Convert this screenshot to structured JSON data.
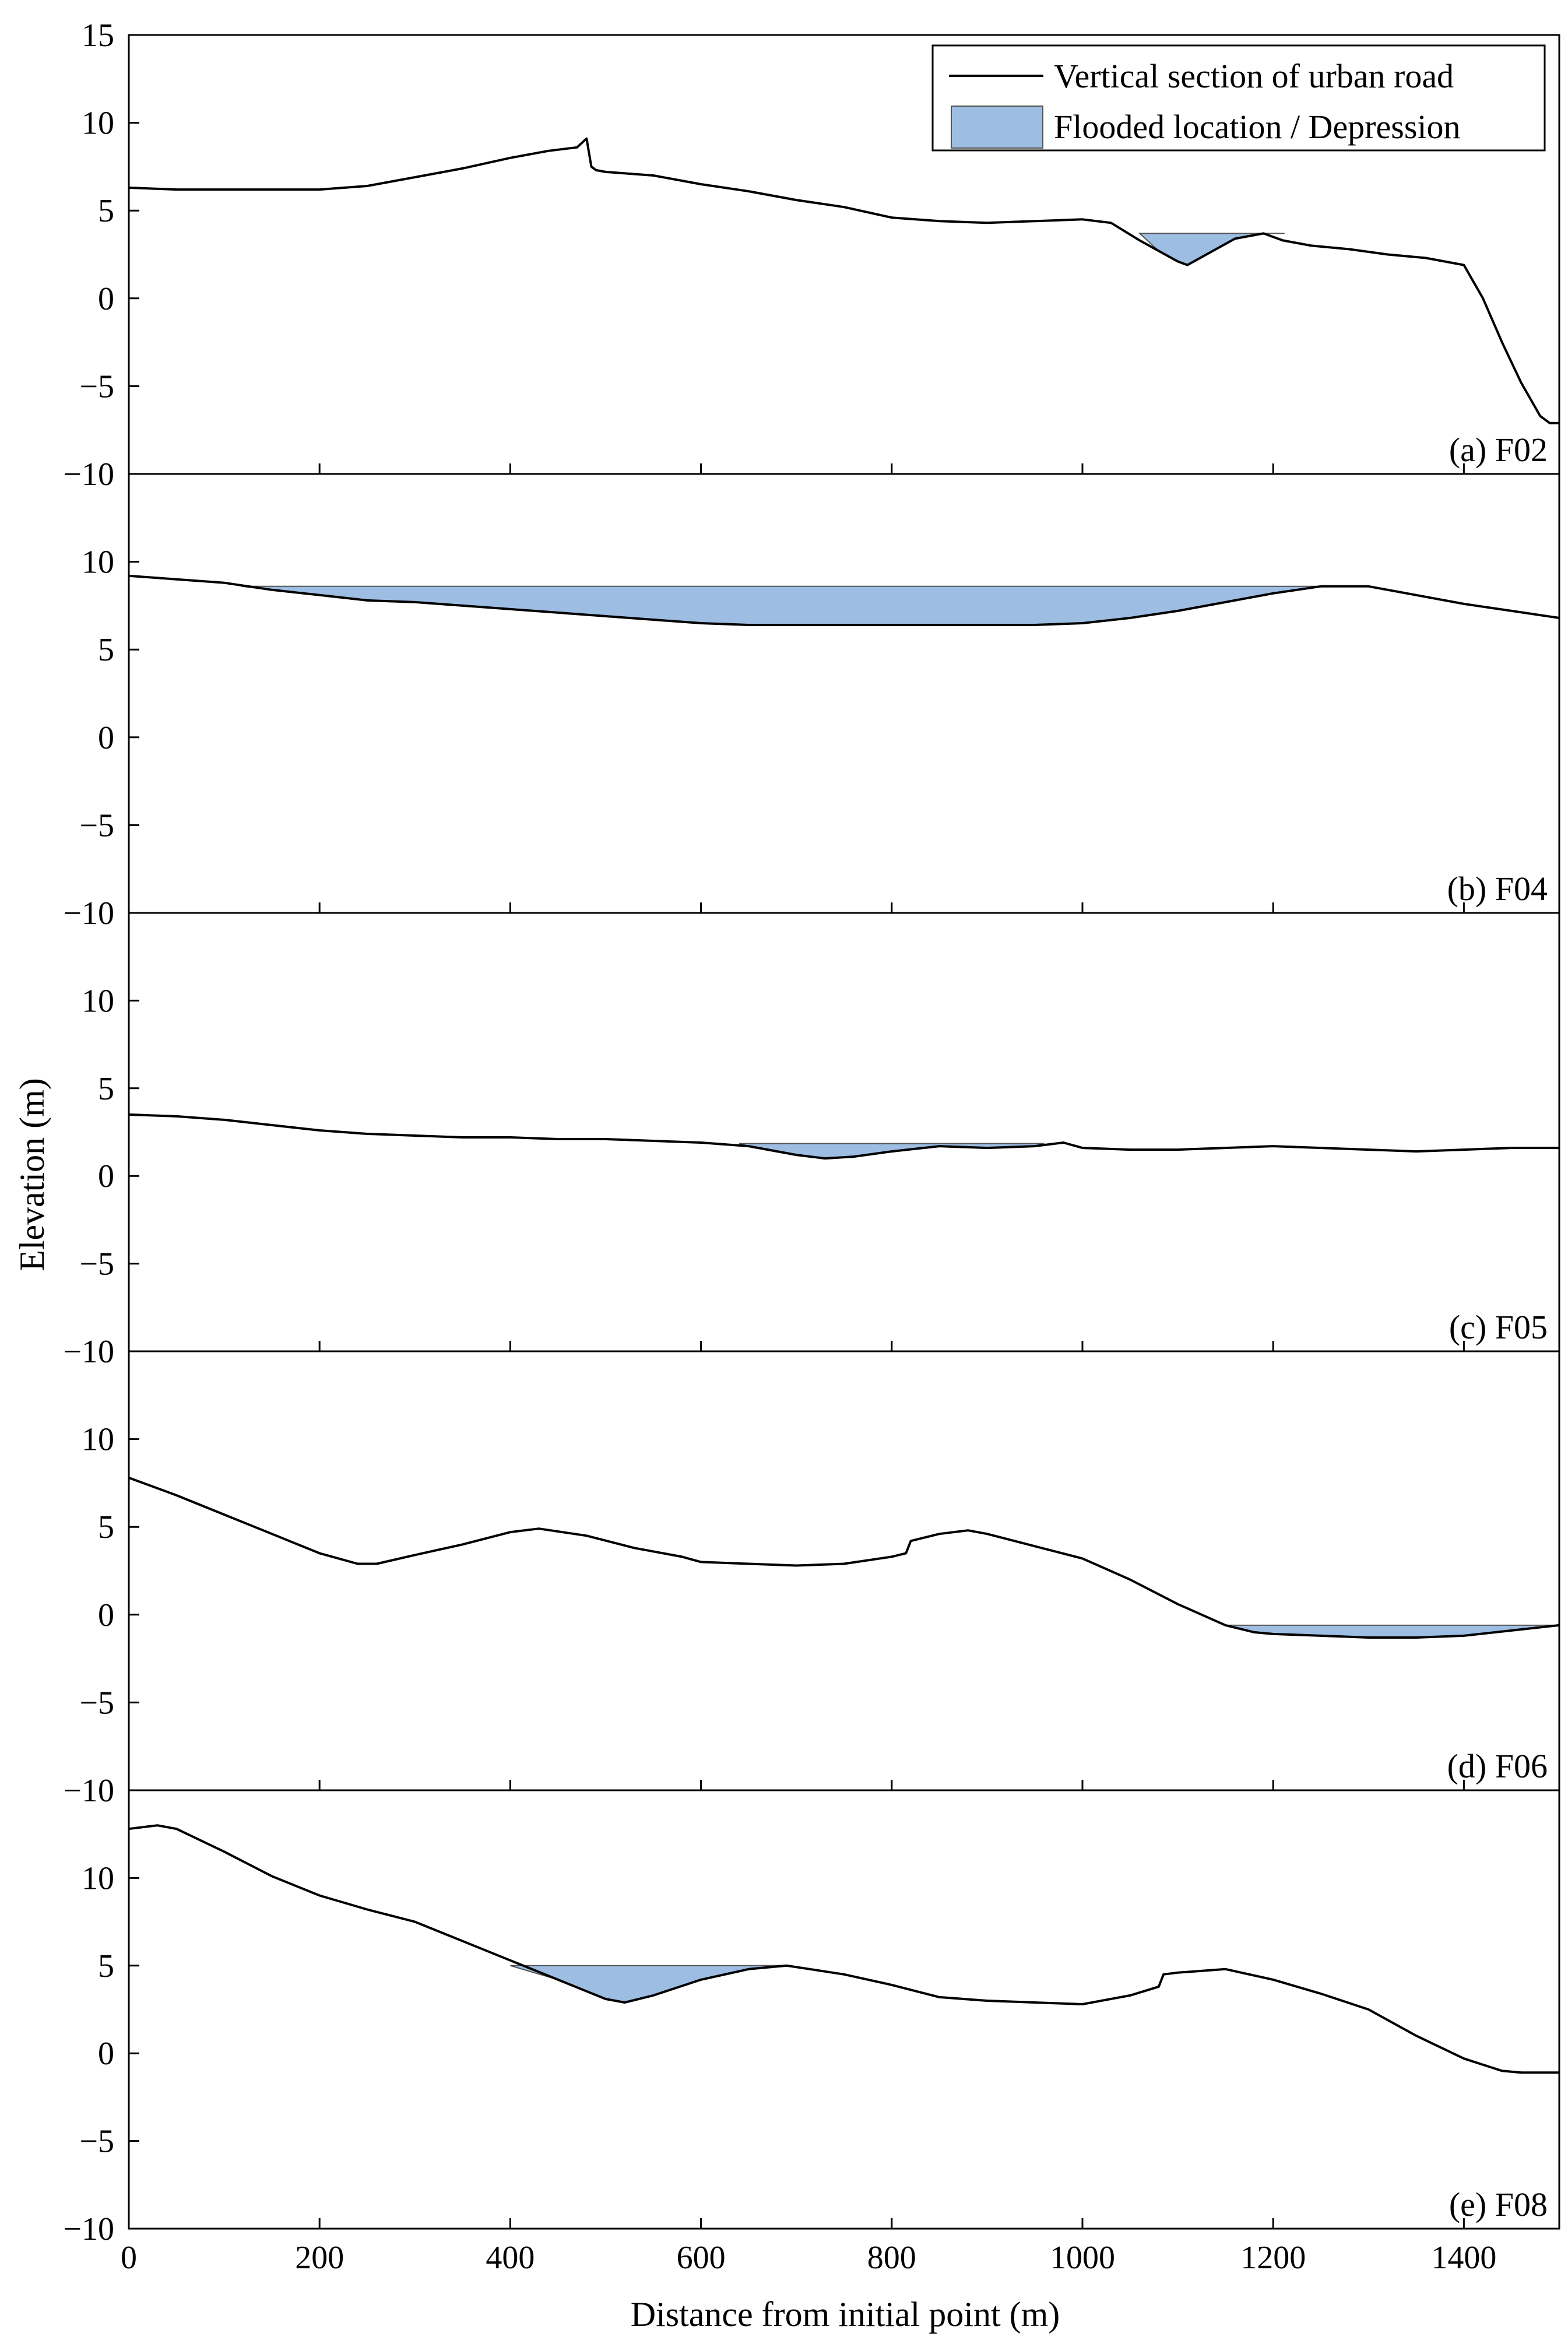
{
  "figure": {
    "xlabel": "Distance from initial point (m)",
    "ylabel": "Elevation (m)"
  },
  "legend": {
    "line_label": "Vertical section of urban road",
    "fill_label": "Flooded location / Depression",
    "position": "top-right"
  },
  "colors": {
    "road_line": "#000000",
    "flood_fill": "#9dbde2",
    "flood_edge": "#555555"
  },
  "chart_data": [
    {
      "type": "line",
      "panel": "a",
      "label": "(a)  F02",
      "xlim": [
        0,
        1500
      ],
      "ylim": [
        -10,
        15
      ],
      "yticks": [
        -10,
        -5,
        0,
        5,
        10,
        15
      ],
      "series": [
        {
          "name": "Vertical section of urban road",
          "x": [
            0,
            50,
            100,
            150,
            200,
            250,
            300,
            350,
            400,
            440,
            470,
            480,
            485,
            490,
            500,
            550,
            600,
            650,
            700,
            750,
            800,
            850,
            900,
            950,
            1000,
            1030,
            1060,
            1080,
            1100,
            1110,
            1130,
            1160,
            1190,
            1210,
            1240,
            1280,
            1320,
            1360,
            1400,
            1420,
            1440,
            1460,
            1480,
            1490,
            1500
          ],
          "y": [
            6.3,
            6.2,
            6.2,
            6.2,
            6.2,
            6.4,
            6.9,
            7.4,
            8.0,
            8.4,
            8.6,
            9.1,
            7.5,
            7.3,
            7.2,
            7.0,
            6.5,
            6.1,
            5.6,
            5.2,
            4.6,
            4.4,
            4.3,
            4.4,
            4.5,
            4.3,
            3.3,
            2.7,
            2.1,
            1.9,
            2.5,
            3.4,
            3.7,
            3.3,
            3.0,
            2.8,
            2.5,
            2.3,
            1.9,
            0.0,
            -2.5,
            -4.8,
            -6.7,
            -7.1,
            -7.1
          ]
        }
      ],
      "flooded_regions": [
        {
          "water_level": 3.7,
          "x": [
            1060,
            1080,
            1100,
            1110,
            1130,
            1160,
            1190,
            1212
          ],
          "y": [
            3.7,
            2.7,
            2.1,
            1.9,
            2.5,
            3.4,
            3.7,
            3.7
          ]
        }
      ]
    },
    {
      "type": "line",
      "panel": "b",
      "label": "(b)  F04",
      "xlim": [
        0,
        1500
      ],
      "ylim": [
        -10,
        15
      ],
      "yticks": [
        -10,
        -5,
        0,
        5,
        10
      ],
      "series": [
        {
          "name": "Vertical section of urban road",
          "x": [
            0,
            50,
            100,
            150,
            200,
            250,
            300,
            350,
            400,
            450,
            500,
            550,
            600,
            650,
            700,
            750,
            800,
            850,
            900,
            950,
            1000,
            1050,
            1100,
            1150,
            1200,
            1250,
            1300,
            1350,
            1400,
            1450,
            1500
          ],
          "y": [
            9.2,
            9.0,
            8.8,
            8.4,
            8.1,
            7.8,
            7.7,
            7.5,
            7.3,
            7.1,
            6.9,
            6.7,
            6.5,
            6.4,
            6.4,
            6.4,
            6.4,
            6.4,
            6.4,
            6.4,
            6.5,
            6.8,
            7.2,
            7.7,
            8.2,
            8.6,
            8.6,
            8.1,
            7.6,
            7.2,
            6.8
          ]
        }
      ],
      "flooded_regions": [
        {
          "water_level": 8.6,
          "x": [
            118,
            150,
            200,
            250,
            300,
            350,
            400,
            450,
            500,
            550,
            600,
            650,
            700,
            750,
            800,
            850,
            900,
            950,
            1000,
            1050,
            1100,
            1150,
            1200,
            1250,
            1270
          ],
          "y": [
            8.6,
            8.4,
            8.1,
            7.8,
            7.7,
            7.5,
            7.3,
            7.1,
            6.9,
            6.7,
            6.5,
            6.4,
            6.4,
            6.4,
            6.4,
            6.4,
            6.4,
            6.4,
            6.5,
            6.8,
            7.2,
            7.7,
            8.2,
            8.6,
            8.6
          ]
        }
      ]
    },
    {
      "type": "line",
      "panel": "c",
      "label": "(c)  F05",
      "xlim": [
        0,
        1500
      ],
      "ylim": [
        -10,
        15
      ],
      "yticks": [
        -10,
        -5,
        0,
        5,
        10
      ],
      "series": [
        {
          "name": "Vertical section of urban road",
          "x": [
            0,
            50,
            100,
            150,
            200,
            250,
            300,
            350,
            400,
            450,
            500,
            550,
            600,
            650,
            700,
            730,
            760,
            800,
            850,
            900,
            950,
            980,
            1000,
            1050,
            1100,
            1150,
            1200,
            1250,
            1300,
            1350,
            1400,
            1450,
            1500
          ],
          "y": [
            3.5,
            3.4,
            3.2,
            2.9,
            2.6,
            2.4,
            2.3,
            2.2,
            2.2,
            2.1,
            2.1,
            2.0,
            1.9,
            1.7,
            1.2,
            1.0,
            1.1,
            1.4,
            1.7,
            1.6,
            1.7,
            1.9,
            1.6,
            1.5,
            1.5,
            1.6,
            1.7,
            1.6,
            1.5,
            1.4,
            1.5,
            1.6,
            1.6
          ]
        }
      ],
      "flooded_regions": [
        {
          "water_level": 1.85,
          "x": [
            640,
            650,
            700,
            730,
            760,
            800,
            850,
            900,
            950,
            960
          ],
          "y": [
            1.85,
            1.7,
            1.2,
            1.0,
            1.1,
            1.4,
            1.7,
            1.6,
            1.7,
            1.85
          ]
        }
      ]
    },
    {
      "type": "line",
      "panel": "d",
      "label": "(d)  F06",
      "xlim": [
        0,
        1500
      ],
      "ylim": [
        -10,
        15
      ],
      "yticks": [
        -10,
        -5,
        0,
        5,
        10
      ],
      "series": [
        {
          "name": "Vertical section of urban road",
          "x": [
            0,
            50,
            100,
            150,
            200,
            240,
            260,
            300,
            350,
            400,
            430,
            480,
            530,
            580,
            600,
            650,
            700,
            750,
            800,
            815,
            820,
            850,
            880,
            900,
            950,
            1000,
            1050,
            1100,
            1150,
            1180,
            1200,
            1250,
            1300,
            1350,
            1400,
            1450,
            1500
          ],
          "y": [
            7.8,
            6.8,
            5.7,
            4.6,
            3.5,
            2.9,
            2.9,
            3.4,
            4.0,
            4.7,
            4.9,
            4.5,
            3.8,
            3.3,
            3.0,
            2.9,
            2.8,
            2.9,
            3.3,
            3.5,
            4.2,
            4.6,
            4.8,
            4.6,
            3.9,
            3.2,
            2.0,
            0.6,
            -0.6,
            -1.0,
            -1.1,
            -1.2,
            -1.3,
            -1.3,
            -1.2,
            -0.9,
            -0.6
          ]
        }
      ],
      "flooded_regions": [
        {
          "water_level": -0.6,
          "x": [
            1150,
            1180,
            1200,
            1250,
            1300,
            1350,
            1400,
            1450,
            1500
          ],
          "y": [
            -0.6,
            -1.0,
            -1.1,
            -1.2,
            -1.3,
            -1.3,
            -1.2,
            -0.9,
            -0.6
          ]
        }
      ]
    },
    {
      "type": "line",
      "panel": "e",
      "label": "(e)  F08",
      "xlim": [
        0,
        1500
      ],
      "ylim": [
        -10,
        15
      ],
      "yticks": [
        -10,
        -5,
        0,
        5,
        10
      ],
      "series": [
        {
          "name": "Vertical section of urban road",
          "x": [
            0,
            30,
            50,
            100,
            150,
            200,
            250,
            300,
            350,
            400,
            450,
            500,
            520,
            550,
            600,
            650,
            690,
            750,
            800,
            850,
            900,
            950,
            1000,
            1050,
            1080,
            1085,
            1100,
            1150,
            1200,
            1250,
            1300,
            1350,
            1400,
            1440,
            1460,
            1500
          ],
          "y": [
            12.8,
            13.0,
            12.8,
            11.5,
            10.1,
            9.0,
            8.2,
            7.5,
            6.4,
            5.3,
            4.2,
            3.1,
            2.9,
            3.3,
            4.2,
            4.8,
            5.0,
            4.5,
            3.9,
            3.2,
            3.0,
            2.9,
            2.8,
            3.3,
            3.8,
            4.5,
            4.6,
            4.8,
            4.2,
            3.4,
            2.5,
            1.0,
            -0.3,
            -1.0,
            -1.1,
            -1.1
          ]
        }
      ],
      "flooded_regions": [
        {
          "water_level": 5.0,
          "x": [
            400,
            450,
            500,
            520,
            550,
            600,
            650,
            690
          ],
          "y": [
            5.0,
            4.2,
            3.1,
            2.9,
            3.3,
            4.2,
            4.8,
            5.0
          ]
        }
      ]
    }
  ],
  "x_axis": {
    "ticks": [
      0,
      200,
      400,
      600,
      800,
      1000,
      1200,
      1400
    ],
    "tick_labels": [
      "0",
      "200",
      "400",
      "600",
      "800",
      "1000",
      "1200",
      "1400"
    ]
  },
  "y_tick_labels": {
    "top_panel": [
      "15",
      "10",
      "5",
      "0",
      "−5",
      "−10"
    ],
    "other_panels": [
      "10",
      "5",
      "0",
      "−5",
      "−10"
    ]
  }
}
